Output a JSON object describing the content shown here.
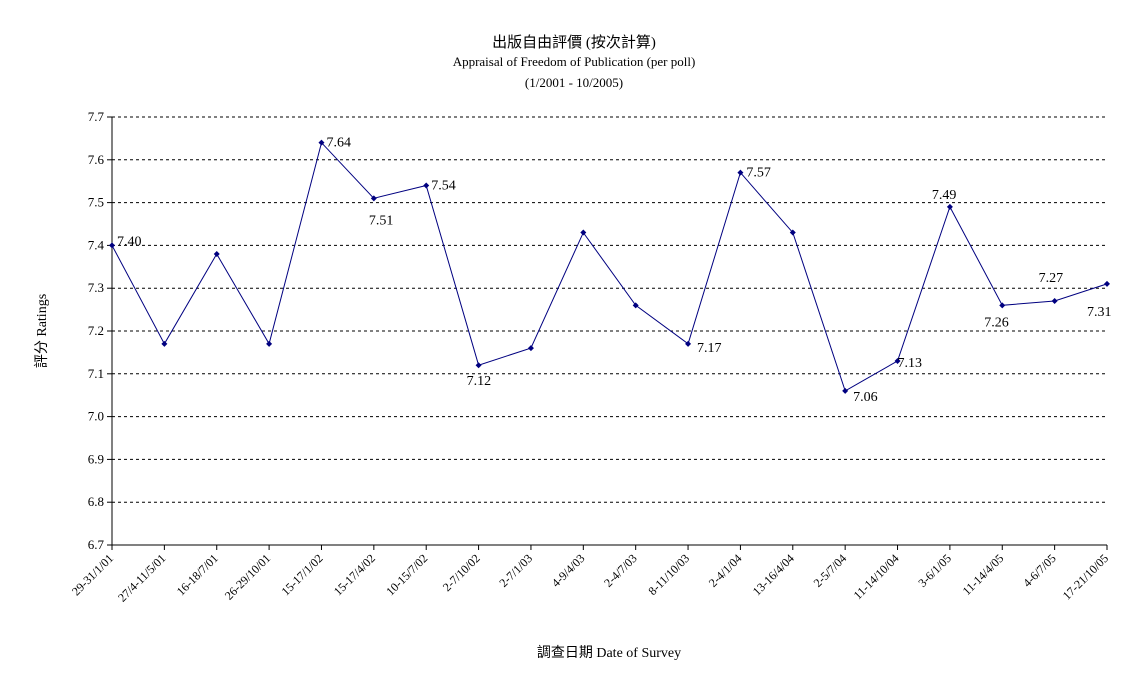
{
  "chart_data": {
    "type": "line",
    "title": "出版自由評價 (按次計算)",
    "subtitle": "Appraisal of Freedom of Publication (per poll)",
    "date_range": "(1/2001 - 10/2005)",
    "xlabel": "調查日期 Date of Survey",
    "ylabel": "評分 Ratings",
    "ylim": [
      6.7,
      7.7
    ],
    "ytick_step": 0.1,
    "grid": true,
    "categories": [
      "29-31/1/01",
      "27/4-11/5/01",
      "16-18/7/01",
      "26-29/10/01",
      "15-17/1/02",
      "15-17/4/02",
      "10-15/7/02",
      "2-7/10/02",
      "2-7/1/03",
      "4-9/4/03",
      "2-4/7/03",
      "8-11/10/03",
      "2-4/1/04",
      "13-16/4/04",
      "2-5/7/04",
      "11-14/10/04",
      "3-6/1/05",
      "11-14/4/05",
      "4-6/7/05",
      "17-21/10/05"
    ],
    "series": [
      {
        "color": "#000080",
        "values": [
          7.4,
          7.17,
          7.38,
          7.17,
          7.64,
          7.51,
          7.54,
          7.12,
          7.16,
          7.43,
          7.26,
          7.17,
          7.57,
          7.43,
          7.06,
          7.13,
          7.49,
          7.26,
          7.27,
          7.31
        ]
      }
    ],
    "data_labels": [
      {
        "index": 0,
        "text": "7.40"
      },
      {
        "index": 4,
        "text": "7.64"
      },
      {
        "index": 5,
        "text": "7.51"
      },
      {
        "index": 6,
        "text": "7.54"
      },
      {
        "index": 7,
        "text": "7.12"
      },
      {
        "index": 11,
        "text": "7.17"
      },
      {
        "index": 12,
        "text": "7.57"
      },
      {
        "index": 14,
        "text": "7.06"
      },
      {
        "index": 15,
        "text": "7.13"
      },
      {
        "index": 16,
        "text": "7.49"
      },
      {
        "index": 17,
        "text": "7.26"
      },
      {
        "index": 18,
        "text": "7.27"
      },
      {
        "index": 19,
        "text": "7.31"
      }
    ]
  }
}
